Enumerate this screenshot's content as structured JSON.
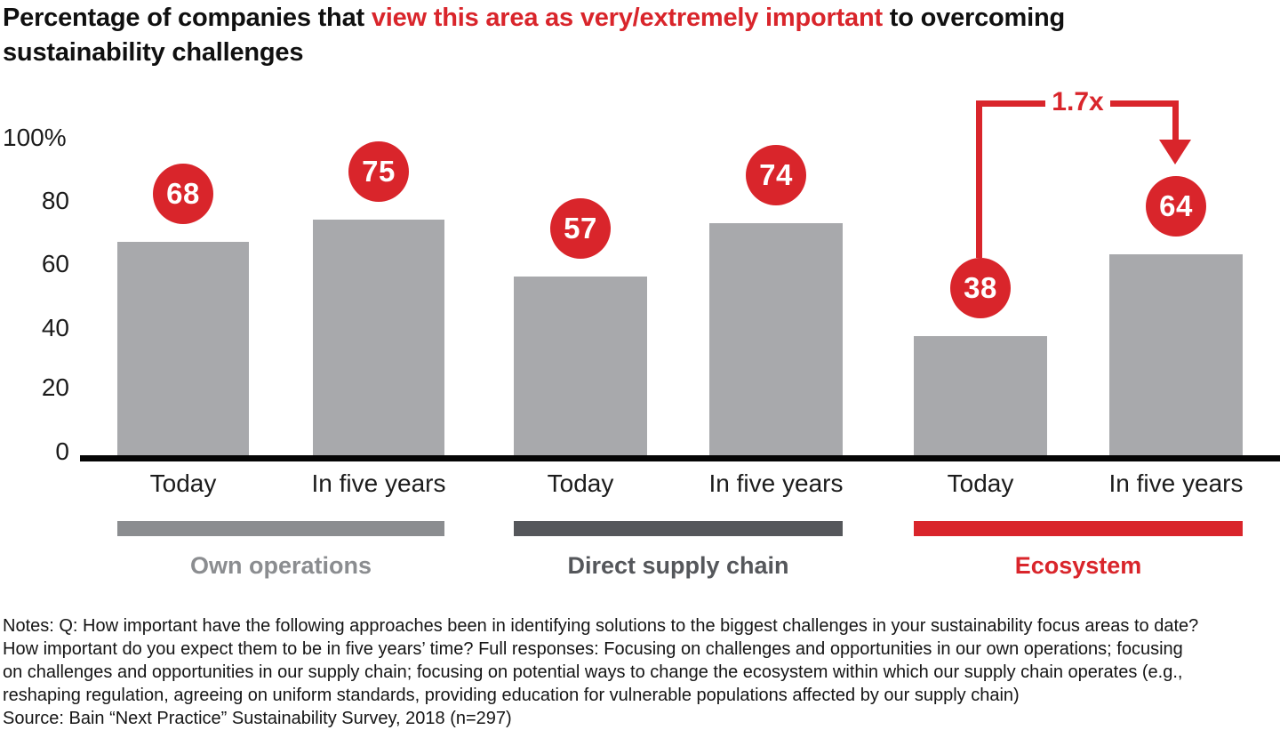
{
  "title": {
    "prefix": "Percentage of companies that ",
    "highlight": "view this area as very/extremely important",
    "suffix": " to overcoming",
    "line2": "sustainability challenges"
  },
  "colors": {
    "accent_red": "#d9252b",
    "bar_gray": "#a8a9ac",
    "own_operations_gray": "#8b8d90",
    "supply_chain_dark_gray": "#55575b",
    "axis_black": "#050505"
  },
  "chart_data": {
    "type": "bar",
    "title": "Percentage of companies that view this area as very/extremely important to overcoming sustainability challenges",
    "ylabel": "",
    "ylim": [
      0,
      100
    ],
    "yticks": [
      "100%",
      "80",
      "60",
      "40",
      "20",
      "0"
    ],
    "categories": [
      "Today",
      "In five years"
    ],
    "grid": false,
    "legend_position": "below",
    "groups": [
      {
        "name": "Own operations",
        "color": "#8b8d90",
        "bars": [
          {
            "label": "Today",
            "value": 68
          },
          {
            "label": "In five years",
            "value": 75
          }
        ]
      },
      {
        "name": "Direct supply chain",
        "color": "#55575b",
        "bars": [
          {
            "label": "Today",
            "value": 57
          },
          {
            "label": "In five years",
            "value": 74
          }
        ]
      },
      {
        "name": "Ecosystem",
        "color": "#d9252b",
        "bars": [
          {
            "label": "Today",
            "value": 38
          },
          {
            "label": "In five years",
            "value": 64
          }
        ]
      }
    ],
    "annotation": {
      "label": "1.7x",
      "from_value": 38,
      "to_value": 64,
      "group": "Ecosystem"
    }
  },
  "notes": {
    "lines": [
      "Notes: Q: How important have the following approaches been in identifying solutions to the biggest challenges in your sustainability focus areas to date?",
      "How important do you expect them to be in five years’ time? Full responses: Focusing on challenges and opportunities in our own operations; focusing",
      "on challenges and opportunities in our supply chain; focusing on potential ways to change the ecosystem within which our supply chain operates (e.g.,",
      "reshaping regulation, agreeing on uniform standards, providing education for vulnerable populations affected by our supply chain)"
    ],
    "source": "Source: Bain “Next Practice” Sustainability Survey, 2018 (n=297)"
  }
}
